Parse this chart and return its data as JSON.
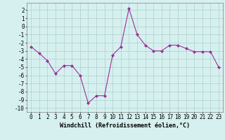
{
  "x": [
    0,
    1,
    2,
    3,
    4,
    5,
    6,
    7,
    8,
    9,
    10,
    11,
    12,
    13,
    14,
    15,
    16,
    17,
    18,
    19,
    20,
    21,
    22,
    23
  ],
  "y": [
    -2.5,
    -3.3,
    -4.2,
    -5.8,
    -4.8,
    -4.8,
    -6.0,
    -9.4,
    -8.5,
    -8.5,
    -3.5,
    -2.5,
    2.2,
    -1.0,
    -2.3,
    -3.0,
    -3.0,
    -2.3,
    -2.3,
    -2.7,
    -3.1,
    -3.1,
    -3.1,
    -5.0
  ],
  "line_color": "#993399",
  "marker": "D",
  "marker_size": 2,
  "bg_color": "#d6f0ef",
  "grid_color": "#b0cece",
  "xlabel": "Windchill (Refroidissement éolien,°C)",
  "xlabel_fontsize": 6,
  "ylim": [
    -10.5,
    2.9
  ],
  "xlim": [
    -0.5,
    23.5
  ],
  "yticks": [
    -10,
    -9,
    -8,
    -7,
    -6,
    -5,
    -4,
    -3,
    -2,
    -1,
    0,
    1,
    2
  ],
  "xticks": [
    0,
    1,
    2,
    3,
    4,
    5,
    6,
    7,
    8,
    9,
    10,
    11,
    12,
    13,
    14,
    15,
    16,
    17,
    18,
    19,
    20,
    21,
    22,
    23
  ],
  "tick_fontsize": 5.5,
  "linewidth": 0.8
}
